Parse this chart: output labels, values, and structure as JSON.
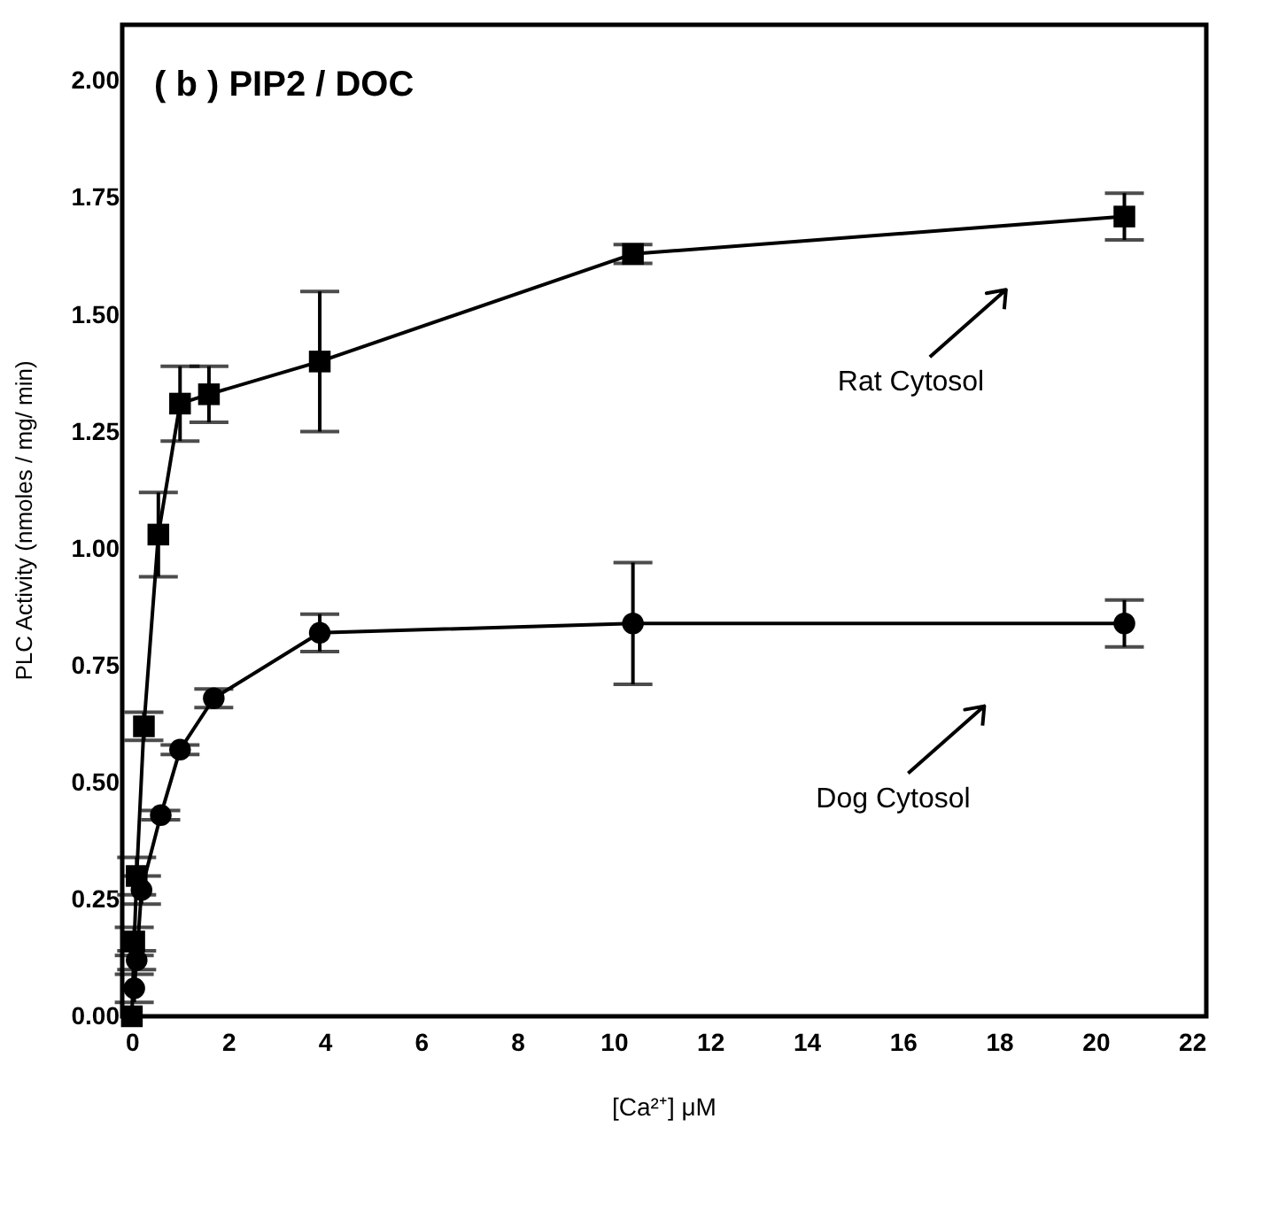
{
  "chart_data": {
    "type": "line",
    "xlabel": "[Ca²⁺] μM",
    "ylabel": "PLC Activity (nmoles / mg/ min)",
    "annotations": [
      "( b ) PIP2 / DOC"
    ],
    "xlim": [
      -0.2,
      22.3
    ],
    "xticks": [
      0,
      2,
      4,
      6,
      8,
      10,
      12,
      14,
      16,
      18,
      20,
      22
    ],
    "ylim": [
      0,
      2.12
    ],
    "yticks": [
      {
        "value": 0,
        "label": "0.00"
      },
      {
        "value": 0.25,
        "label": "0.25"
      },
      {
        "value": 0.5,
        "label": "0.50"
      },
      {
        "value": 0.75,
        "label": "0.75"
      },
      {
        "value": 1,
        "label": "1.00"
      },
      {
        "value": 1.25,
        "label": "1.25"
      },
      {
        "value": 1.5,
        "label": "1.50"
      },
      {
        "value": 1.75,
        "label": "1.75"
      },
      {
        "value": 2,
        "label": "2.00"
      }
    ],
    "grid": false,
    "legend": "right",
    "line_style": "solid",
    "series": [
      {
        "name": "Rat Cytosol",
        "color": "#000000",
        "marker": "square",
        "x": [
          0,
          0.05,
          0.1,
          0.25,
          0.55,
          1.0,
          1.6,
          3.9,
          10.4,
          20.6
        ],
        "values": [
          0.0,
          0.16,
          0.3,
          0.62,
          1.03,
          1.31,
          1.33,
          1.4,
          1.63,
          1.71
        ],
        "errors": [
          null,
          0.03,
          0.04,
          0.03,
          0.09,
          0.08,
          0.06,
          0.15,
          0.02,
          0.05
        ]
      },
      {
        "name": "Dog Cytosol",
        "color": "#000000",
        "marker": "circle",
        "x": [
          0.05,
          0.1,
          0.2,
          0.6,
          1.0,
          1.7,
          3.9,
          10.4,
          20.6
        ],
        "values": [
          0.06,
          0.12,
          0.27,
          0.43,
          0.57,
          0.68,
          0.82,
          0.84,
          0.84
        ],
        "errors": [
          0.03,
          0.02,
          0.03,
          0.01,
          0.01,
          0.02,
          0.04,
          0.13,
          0.05
        ]
      }
    ]
  }
}
